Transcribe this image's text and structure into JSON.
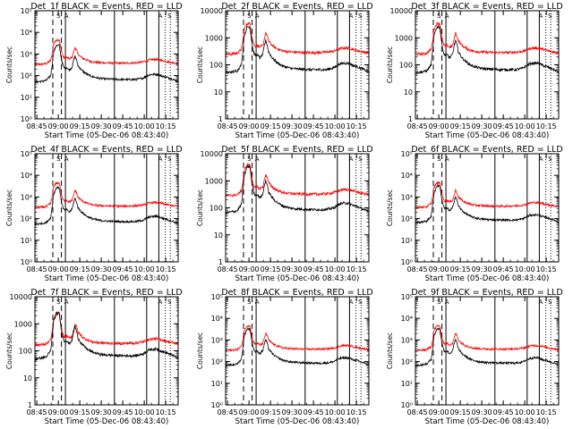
{
  "figure": {
    "xlabel": "Start Time (05-Dec-06 08:43:40)",
    "ylabel": "Counts/sec",
    "colors": {
      "events": "#000000",
      "lld": "#ff0000",
      "axes": "#000000"
    }
  },
  "shared": {
    "type": "line",
    "log_y": true,
    "x_unit": "minutes since 08:43:40",
    "xlim": [
      0,
      100
    ],
    "x_tick_labels": [
      "08:45",
      "09:00",
      "09:15",
      "09:30",
      "09:45",
      "10:00",
      "10:15"
    ],
    "x_tick_positions": [
      1.33,
      16.33,
      31.33,
      46.33,
      61.33,
      76.33,
      91.33
    ],
    "markers": {
      "dashed": [
        12.5,
        18.5
      ],
      "solid": [
        21.3,
        55.5,
        78.0,
        86.5
      ],
      "dotted": [
        91.0,
        94.5
      ],
      "top_letters": [
        {
          "x": 16.5,
          "text": "S"
        },
        {
          "x": 22.0,
          "text": "A"
        },
        {
          "x": 87.5,
          "text": "A"
        },
        {
          "x": 94.0,
          "text": "S"
        }
      ]
    },
    "x": [
      0,
      5,
      8,
      11,
      12,
      13,
      15,
      17,
      18,
      19,
      20,
      21,
      22,
      24,
      26,
      27,
      28,
      29,
      30,
      32,
      34,
      37,
      40,
      45,
      50,
      55,
      60,
      65,
      70,
      75,
      78,
      80,
      83,
      86,
      88,
      90,
      92,
      94,
      96,
      98,
      100
    ],
    "black_shape": [
      50,
      55,
      60,
      100,
      300,
      1200,
      2500,
      2500,
      900,
      400,
      250,
      220,
      240,
      180,
      250,
      500,
      800,
      550,
      300,
      200,
      150,
      110,
      90,
      75,
      70,
      68,
      66,
      66,
      66,
      75,
      95,
      110,
      115,
      115,
      100,
      90,
      85,
      75,
      70,
      60,
      55
    ],
    "red_shape": [
      330,
      340,
      360,
      500,
      1000,
      2800,
      4500,
      4500,
      2000,
      1000,
      700,
      650,
      700,
      600,
      700,
      1200,
      2000,
      1600,
      1000,
      750,
      600,
      500,
      430,
      400,
      385,
      380,
      375,
      380,
      390,
      420,
      480,
      530,
      560,
      550,
      520,
      480,
      450,
      420,
      400,
      380,
      370
    ]
  },
  "chart_data": [
    {
      "type": "line",
      "title": "Det_1f BLACK = Events, RED = LLD",
      "ylim": [
        1,
        100000
      ],
      "y_tick_labels": [
        "10⁰",
        "10¹",
        "10²",
        "10³",
        "10⁴",
        "10⁵"
      ],
      "black_scale": 1.0,
      "red_scale": 1.0
    },
    {
      "type": "line",
      "title": "Det_2f BLACK = Events, RED = LLD",
      "ylim": [
        1,
        10000
      ],
      "y_tick_labels": [
        "1",
        "10",
        "100",
        "1000",
        "10000"
      ],
      "black_scale": 1.0,
      "red_scale": 0.75
    },
    {
      "type": "line",
      "title": "Det_3f BLACK = Events, RED = LLD",
      "ylim": [
        1,
        10000
      ],
      "y_tick_labels": [
        "1",
        "10",
        "100",
        "1000",
        "10000"
      ],
      "black_scale": 1.0,
      "red_scale": 0.75
    },
    {
      "type": "line",
      "title": "Det_4f BLACK = Events, RED = LLD",
      "ylim": [
        1,
        100000
      ],
      "y_tick_labels": [
        "10⁰",
        "10¹",
        "10²",
        "10³",
        "10⁴",
        "10⁵"
      ],
      "black_scale": 1.1,
      "red_scale": 1.0
    },
    {
      "type": "line",
      "title": "Det_5f BLACK = Events, RED = LLD",
      "ylim": [
        1,
        10000
      ],
      "y_tick_labels": [
        "1",
        "10",
        "100",
        "1000",
        "10000"
      ],
      "black_scale": 1.3,
      "red_scale": 0.85
    },
    {
      "type": "line",
      "title": "Det_6f BLACK = Events, RED = LLD",
      "ylim": [
        1,
        100000
      ],
      "y_tick_labels": [
        "10⁰",
        "10¹",
        "10²",
        "10³",
        "10⁴",
        "10⁵"
      ],
      "black_scale": 1.3,
      "red_scale": 1.0
    },
    {
      "type": "line",
      "title": "Det_7f BLACK = Events, RED = LLD",
      "ylim": [
        1,
        10000
      ],
      "y_tick_labels": [
        "1",
        "10",
        "100",
        "1000",
        "10000"
      ],
      "black_scale": 1.0,
      "red_scale": 0.5
    },
    {
      "type": "line",
      "title": "Det_8f BLACK = Events, RED = LLD",
      "ylim": [
        1,
        100000
      ],
      "y_tick_labels": [
        "10⁰",
        "10¹",
        "10²",
        "10³",
        "10⁴",
        "10⁵"
      ],
      "black_scale": 1.3,
      "red_scale": 1.0
    },
    {
      "type": "line",
      "title": "Det_9f BLACK = Events, RED = LLD",
      "ylim": [
        1,
        100000
      ],
      "y_tick_labels": [
        "10⁰",
        "10¹",
        "10²",
        "10³",
        "10⁴",
        "10⁵"
      ],
      "black_scale": 1.3,
      "red_scale": 1.0
    }
  ]
}
